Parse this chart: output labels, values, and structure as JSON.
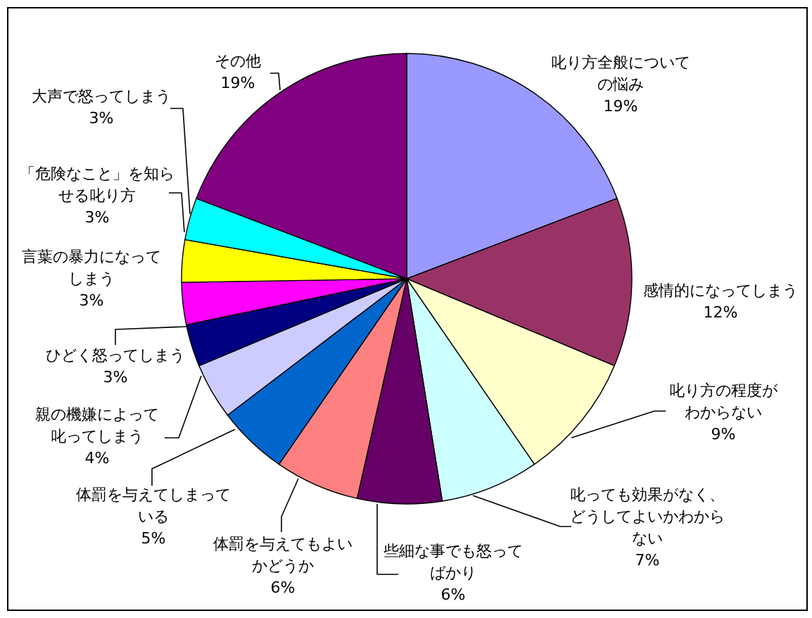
{
  "chart_data": {
    "type": "pie",
    "categories": [
      "叱り方全般についての悩み",
      "感情的になってしまう",
      "叱り方の程度がわからない",
      "叱っても効果がなく、どうしてよいかわからない",
      "些細な事でも怒ってばかり",
      "体罰を与えてもよいかどうか",
      "体罰を与えてしまっている",
      "親の機嫌によって叱ってしまう",
      "ひどく怒ってしまう",
      "言葉の暴力になってしまう",
      "「危険なこと」を知らせる叱り方",
      "大声で怒ってしまう",
      "その他"
    ],
    "values": [
      19,
      12,
      9,
      7,
      6,
      6,
      5,
      4,
      3,
      3,
      3,
      3,
      19
    ],
    "value_labels": [
      "19%",
      "12%",
      "9%",
      "7%",
      "6%",
      "6%",
      "5%",
      "4%",
      "3%",
      "3%",
      "3%",
      "3%",
      "19%"
    ],
    "colors": [
      "#9999ff",
      "#993366",
      "#ffffcc",
      "#ccffff",
      "#660066",
      "#ff8080",
      "#0066cc",
      "#ccccff",
      "#000080",
      "#ff00ff",
      "#ffff00",
      "#00ffff",
      "#800080"
    ]
  }
}
